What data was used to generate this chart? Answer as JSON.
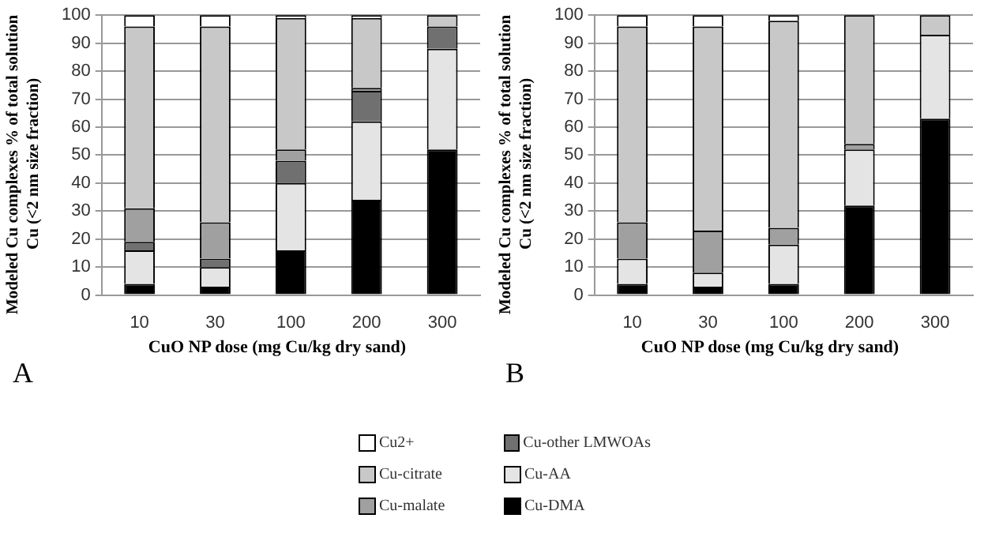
{
  "chart_data": [
    {
      "type": "bar",
      "stacked": true,
      "categories": [
        "10",
        "30",
        "100",
        "200",
        "300"
      ],
      "xlabel": "CuO NP dose (mg Cu/kg dry sand)",
      "ylabel": "Modeled Cu complexes % of total solution Cu (<2 nm size fraction)",
      "ylim": [
        0,
        100
      ],
      "yticks": [
        0,
        10,
        20,
        30,
        40,
        50,
        60,
        70,
        80,
        90,
        100
      ],
      "grid": "y",
      "legend": "bottom",
      "annotations": [
        "A"
      ],
      "series": [
        {
          "name": "Cu-DMA",
          "color": "#000000",
          "values": [
            4,
            3,
            16,
            34,
            52
          ]
        },
        {
          "name": "Cu-AA",
          "color": "#e4e4e4",
          "values": [
            12,
            7,
            24,
            28,
            36
          ]
        },
        {
          "name": "Cu-other LMWOAs",
          "color": "#707070",
          "values": [
            3,
            3,
            8,
            11,
            8
          ]
        },
        {
          "name": "Cu-malate",
          "color": "#a0a0a0",
          "values": [
            12,
            13,
            4,
            1,
            0
          ]
        },
        {
          "name": "Cu-citrate",
          "color": "#c8c8c8",
          "values": [
            65,
            70,
            47,
            25,
            4
          ]
        },
        {
          "name": "Cu2+",
          "color": "#ffffff",
          "values": [
            4,
            4,
            1,
            1,
            0
          ]
        }
      ]
    },
    {
      "type": "bar",
      "stacked": true,
      "categories": [
        "10",
        "30",
        "100",
        "200",
        "300"
      ],
      "xlabel": "CuO NP dose (mg Cu/kg dry sand)",
      "ylabel": "Modeled Cu complexes % of total solution Cu (<2 nm size fraction)",
      "ylim": [
        0,
        100
      ],
      "yticks": [
        0,
        10,
        20,
        30,
        40,
        50,
        60,
        70,
        80,
        90,
        100
      ],
      "grid": "y",
      "legend": "bottom",
      "annotations": [
        "B"
      ],
      "series": [
        {
          "name": "Cu-DMA",
          "color": "#000000",
          "values": [
            4,
            3,
            4,
            32,
            63
          ]
        },
        {
          "name": "Cu-AA",
          "color": "#e4e4e4",
          "values": [
            9,
            5,
            14,
            20,
            30
          ]
        },
        {
          "name": "Cu-other LMWOAs",
          "color": "#707070",
          "values": [
            0,
            0,
            0,
            0,
            0
          ]
        },
        {
          "name": "Cu-malate",
          "color": "#a0a0a0",
          "values": [
            13,
            15,
            6,
            2,
            0
          ]
        },
        {
          "name": "Cu-citrate",
          "color": "#c8c8c8",
          "values": [
            70,
            73,
            74,
            46,
            7
          ]
        },
        {
          "name": "Cu2+",
          "color": "#ffffff",
          "values": [
            4,
            4,
            2,
            0,
            0
          ]
        }
      ]
    }
  ]
}
